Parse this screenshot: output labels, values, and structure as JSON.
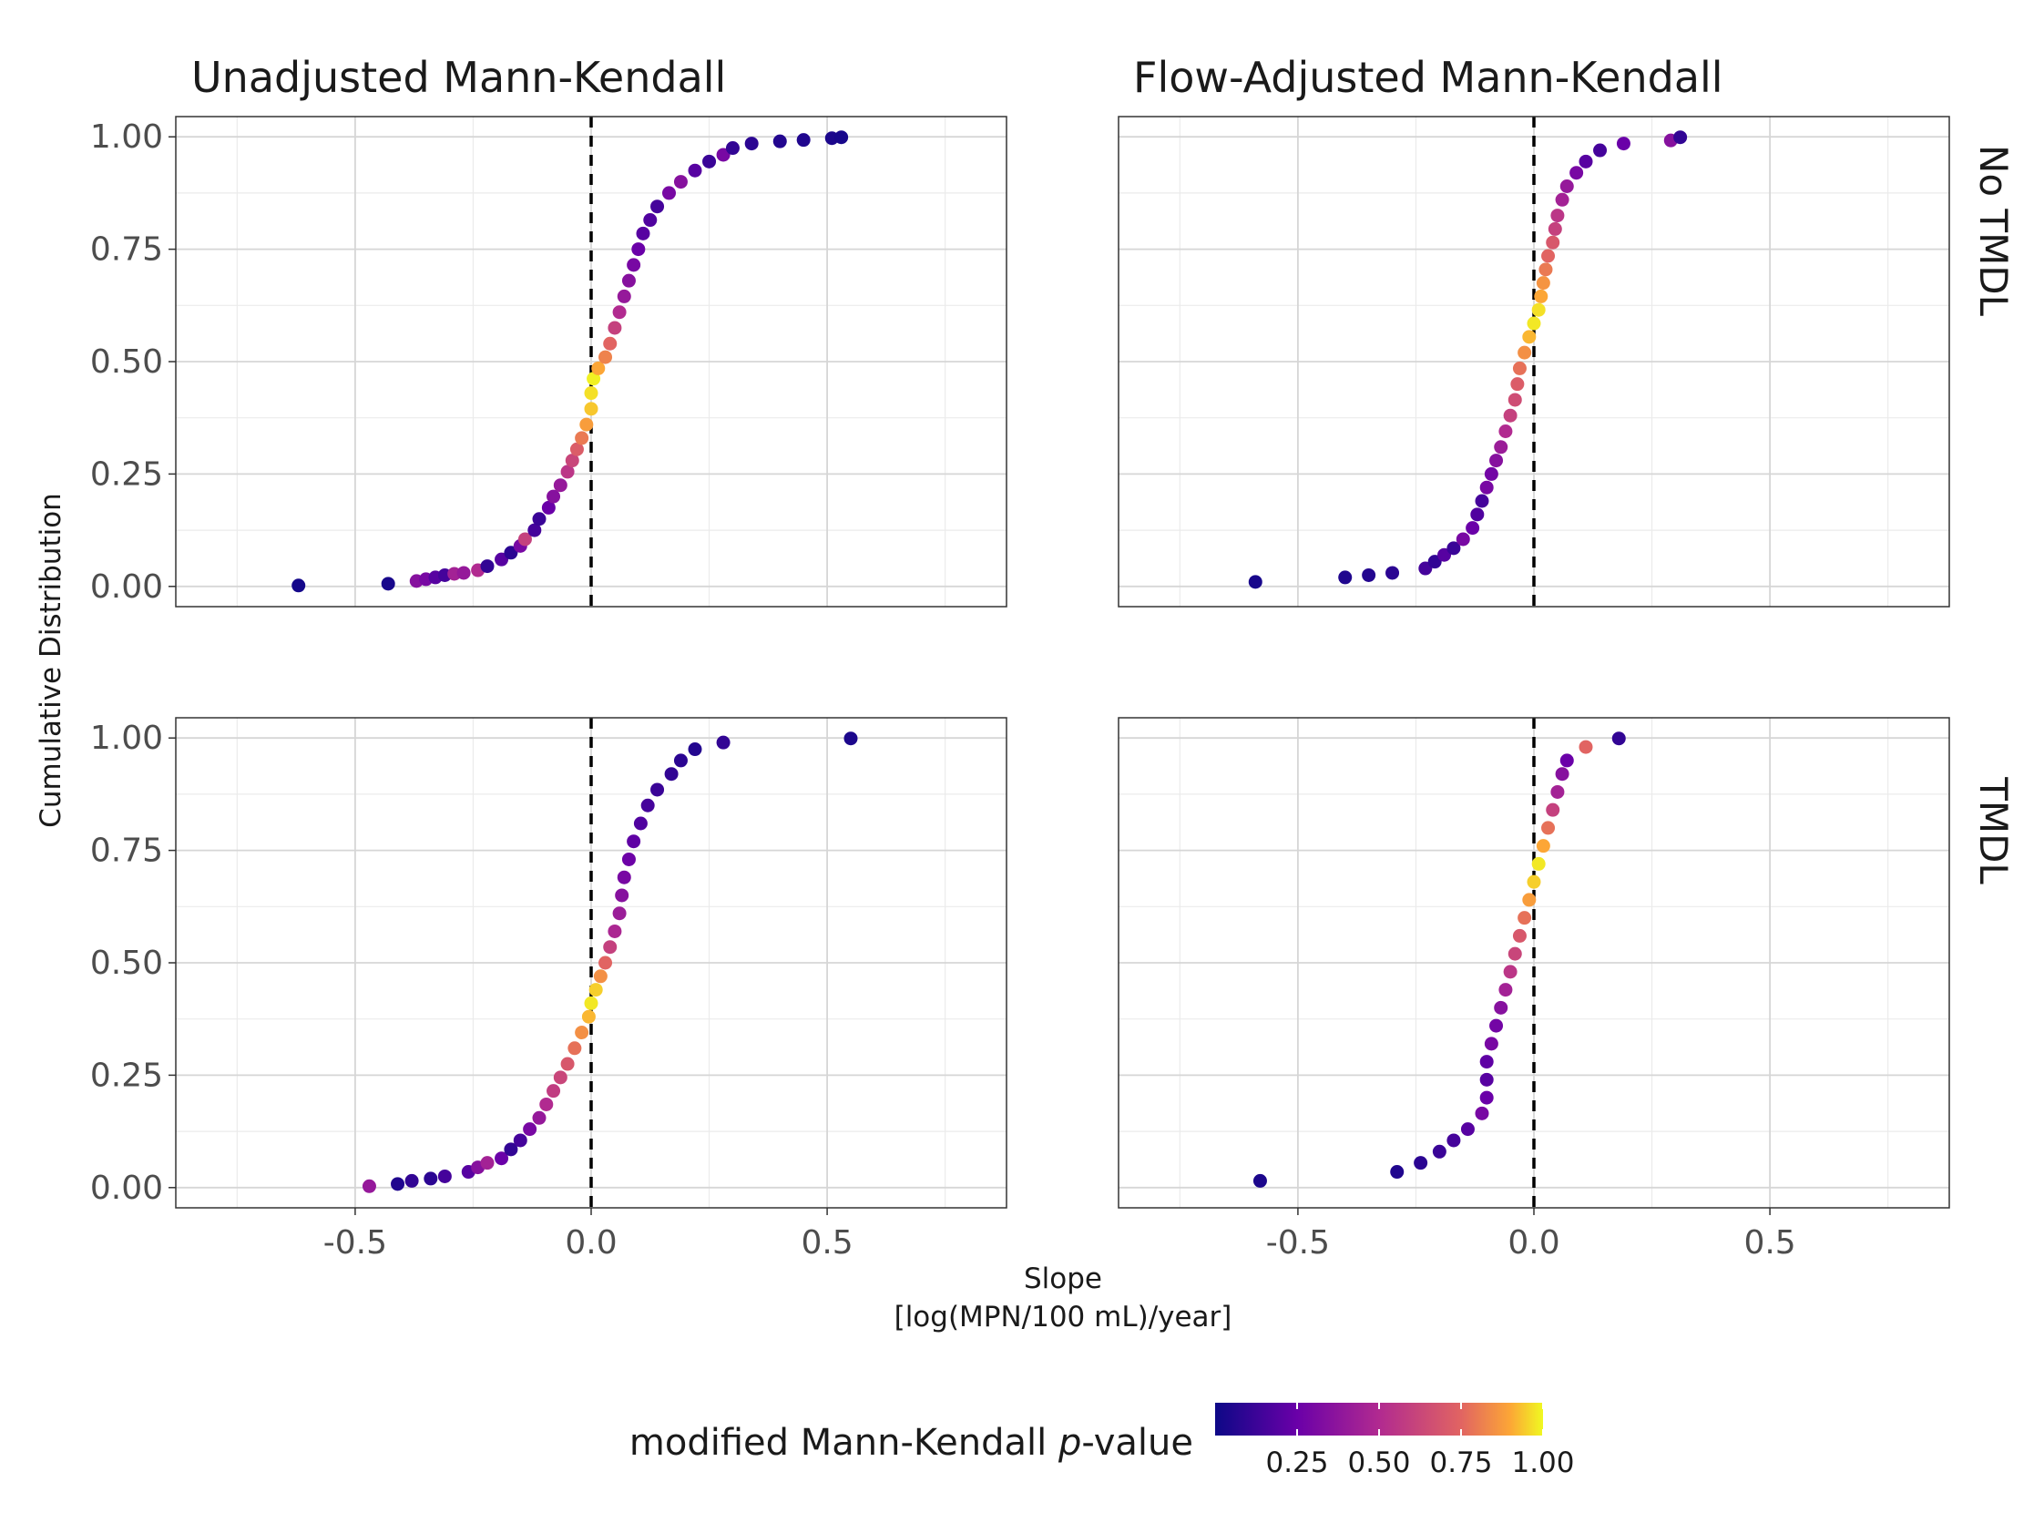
{
  "chart_data": {
    "type": "scatter",
    "panel_titles": [
      "Unadjusted Mann-Kendall",
      "Flow-Adjusted Mann-Kendall"
    ],
    "row_labels": [
      "No TMDL",
      "TMDL"
    ],
    "xlabel_line1": "Slope",
    "xlabel_line2": "[log(MPN/100 mL)/year]",
    "ylabel": "Cumulative Distribution",
    "xlim": [
      -0.88,
      0.88
    ],
    "ylim": [
      -0.045,
      1.045
    ],
    "x_ticks": [
      -0.5,
      0.0,
      0.5
    ],
    "x_tick_labels": [
      "-0.5",
      "0.0",
      "0.5"
    ],
    "y_ticks": [
      0,
      0.25,
      0.5,
      0.75,
      1
    ],
    "y_tick_labels": [
      "0.00",
      "0.25",
      "0.50",
      "0.75",
      "1.00"
    ],
    "reference_line_x": 0,
    "grid": true,
    "colorscale": "plasma",
    "legend": {
      "title_text": "modified Mann-Kendall ",
      "title_italic": "p",
      "title_suffix": "-value",
      "position": "bottom",
      "ticks": [
        0.25,
        0.5,
        0.75,
        1.0
      ],
      "tick_labels": [
        "0.25",
        "0.50",
        "0.75",
        "1.00"
      ],
      "range": [
        0.0,
        1.0
      ]
    },
    "panels": [
      {
        "row": "No TMDL",
        "column": "Unadjusted Mann-Kendall",
        "points": [
          [
            -0.62,
            0.002,
            0.02
          ],
          [
            -0.43,
            0.006,
            0.03
          ],
          [
            -0.37,
            0.012,
            0.35
          ],
          [
            -0.35,
            0.016,
            0.3
          ],
          [
            -0.33,
            0.02,
            0.2
          ],
          [
            -0.31,
            0.025,
            0.15
          ],
          [
            -0.29,
            0.028,
            0.45
          ],
          [
            -0.27,
            0.03,
            0.4
          ],
          [
            -0.24,
            0.036,
            0.5
          ],
          [
            -0.22,
            0.045,
            0.1
          ],
          [
            -0.19,
            0.06,
            0.2
          ],
          [
            -0.17,
            0.075,
            0.08
          ],
          [
            -0.15,
            0.09,
            0.3
          ],
          [
            -0.14,
            0.105,
            0.6
          ],
          [
            -0.12,
            0.125,
            0.15
          ],
          [
            -0.11,
            0.15,
            0.12
          ],
          [
            -0.09,
            0.175,
            0.25
          ],
          [
            -0.08,
            0.2,
            0.35
          ],
          [
            -0.065,
            0.225,
            0.4
          ],
          [
            -0.05,
            0.255,
            0.55
          ],
          [
            -0.04,
            0.28,
            0.62
          ],
          [
            -0.03,
            0.305,
            0.72
          ],
          [
            -0.02,
            0.33,
            0.8
          ],
          [
            -0.01,
            0.36,
            0.88
          ],
          [
            0.0,
            0.395,
            0.94
          ],
          [
            0.0,
            0.43,
            0.97
          ],
          [
            0.005,
            0.462,
            0.99
          ],
          [
            0.015,
            0.485,
            0.9
          ],
          [
            0.03,
            0.51,
            0.82
          ],
          [
            0.04,
            0.54,
            0.75
          ],
          [
            0.05,
            0.575,
            0.6
          ],
          [
            0.06,
            0.61,
            0.5
          ],
          [
            0.07,
            0.645,
            0.4
          ],
          [
            0.08,
            0.68,
            0.35
          ],
          [
            0.09,
            0.715,
            0.3
          ],
          [
            0.1,
            0.75,
            0.25
          ],
          [
            0.11,
            0.785,
            0.2
          ],
          [
            0.125,
            0.815,
            0.18
          ],
          [
            0.14,
            0.845,
            0.15
          ],
          [
            0.165,
            0.875,
            0.3
          ],
          [
            0.19,
            0.9,
            0.35
          ],
          [
            0.22,
            0.925,
            0.2
          ],
          [
            0.25,
            0.945,
            0.12
          ],
          [
            0.28,
            0.96,
            0.3
          ],
          [
            0.3,
            0.975,
            0.1
          ],
          [
            0.34,
            0.985,
            0.08
          ],
          [
            0.4,
            0.99,
            0.06
          ],
          [
            0.45,
            0.993,
            0.05
          ],
          [
            0.51,
            0.997,
            0.04
          ],
          [
            0.53,
            0.999,
            0.03
          ]
        ]
      },
      {
        "row": "No TMDL",
        "column": "Flow-Adjusted Mann-Kendall",
        "points": [
          [
            -0.59,
            0.01,
            0.03
          ],
          [
            -0.4,
            0.02,
            0.05
          ],
          [
            -0.35,
            0.025,
            0.06
          ],
          [
            -0.3,
            0.03,
            0.08
          ],
          [
            -0.23,
            0.04,
            0.15
          ],
          [
            -0.21,
            0.055,
            0.1
          ],
          [
            -0.19,
            0.07,
            0.2
          ],
          [
            -0.17,
            0.085,
            0.12
          ],
          [
            -0.15,
            0.105,
            0.3
          ],
          [
            -0.13,
            0.13,
            0.25
          ],
          [
            -0.12,
            0.16,
            0.18
          ],
          [
            -0.11,
            0.19,
            0.15
          ],
          [
            -0.1,
            0.22,
            0.3
          ],
          [
            -0.09,
            0.25,
            0.28
          ],
          [
            -0.08,
            0.28,
            0.35
          ],
          [
            -0.07,
            0.31,
            0.42
          ],
          [
            -0.06,
            0.345,
            0.5
          ],
          [
            -0.05,
            0.38,
            0.6
          ],
          [
            -0.04,
            0.415,
            0.65
          ],
          [
            -0.035,
            0.45,
            0.72
          ],
          [
            -0.03,
            0.485,
            0.78
          ],
          [
            -0.02,
            0.52,
            0.85
          ],
          [
            -0.01,
            0.555,
            0.92
          ],
          [
            0.0,
            0.585,
            0.98
          ],
          [
            0.01,
            0.615,
            0.97
          ],
          [
            0.015,
            0.645,
            0.9
          ],
          [
            0.02,
            0.675,
            0.86
          ],
          [
            0.025,
            0.705,
            0.8
          ],
          [
            0.03,
            0.735,
            0.75
          ],
          [
            0.04,
            0.765,
            0.7
          ],
          [
            0.045,
            0.795,
            0.6
          ],
          [
            0.05,
            0.825,
            0.55
          ],
          [
            0.06,
            0.86,
            0.45
          ],
          [
            0.07,
            0.89,
            0.4
          ],
          [
            0.09,
            0.92,
            0.3
          ],
          [
            0.11,
            0.945,
            0.2
          ],
          [
            0.14,
            0.97,
            0.15
          ],
          [
            0.19,
            0.985,
            0.25
          ],
          [
            0.29,
            0.992,
            0.35
          ],
          [
            0.31,
            0.999,
            0.1
          ]
        ]
      },
      {
        "row": "TMDL",
        "column": "Unadjusted Mann-Kendall",
        "points": [
          [
            -0.47,
            0.003,
            0.4
          ],
          [
            -0.41,
            0.008,
            0.05
          ],
          [
            -0.38,
            0.015,
            0.1
          ],
          [
            -0.34,
            0.02,
            0.08
          ],
          [
            -0.31,
            0.025,
            0.15
          ],
          [
            -0.26,
            0.035,
            0.2
          ],
          [
            -0.24,
            0.045,
            0.35
          ],
          [
            -0.22,
            0.055,
            0.45
          ],
          [
            -0.19,
            0.065,
            0.25
          ],
          [
            -0.17,
            0.085,
            0.1
          ],
          [
            -0.15,
            0.105,
            0.15
          ],
          [
            -0.13,
            0.13,
            0.3
          ],
          [
            -0.11,
            0.155,
            0.4
          ],
          [
            -0.095,
            0.185,
            0.5
          ],
          [
            -0.08,
            0.215,
            0.58
          ],
          [
            -0.065,
            0.245,
            0.62
          ],
          [
            -0.05,
            0.275,
            0.7
          ],
          [
            -0.035,
            0.31,
            0.78
          ],
          [
            -0.02,
            0.345,
            0.85
          ],
          [
            -0.005,
            0.38,
            0.92
          ],
          [
            0.0,
            0.41,
            0.98
          ],
          [
            0.01,
            0.44,
            0.95
          ],
          [
            0.02,
            0.47,
            0.85
          ],
          [
            0.03,
            0.5,
            0.75
          ],
          [
            0.04,
            0.535,
            0.6
          ],
          [
            0.05,
            0.57,
            0.48
          ],
          [
            0.06,
            0.61,
            0.42
          ],
          [
            0.065,
            0.65,
            0.35
          ],
          [
            0.07,
            0.69,
            0.3
          ],
          [
            0.08,
            0.73,
            0.26
          ],
          [
            0.09,
            0.77,
            0.22
          ],
          [
            0.105,
            0.81,
            0.18
          ],
          [
            0.12,
            0.85,
            0.15
          ],
          [
            0.14,
            0.885,
            0.12
          ],
          [
            0.17,
            0.92,
            0.1
          ],
          [
            0.19,
            0.95,
            0.08
          ],
          [
            0.22,
            0.975,
            0.06
          ],
          [
            0.28,
            0.99,
            0.1
          ],
          [
            0.55,
            0.999,
            0.04
          ]
        ]
      },
      {
        "row": "TMDL",
        "column": "Flow-Adjusted Mann-Kendall",
        "points": [
          [
            -0.58,
            0.015,
            0.04
          ],
          [
            -0.29,
            0.035,
            0.05
          ],
          [
            -0.24,
            0.055,
            0.08
          ],
          [
            -0.2,
            0.08,
            0.12
          ],
          [
            -0.17,
            0.105,
            0.15
          ],
          [
            -0.14,
            0.13,
            0.2
          ],
          [
            -0.11,
            0.165,
            0.3
          ],
          [
            -0.1,
            0.2,
            0.25
          ],
          [
            -0.1,
            0.24,
            0.2
          ],
          [
            -0.1,
            0.28,
            0.22
          ],
          [
            -0.09,
            0.32,
            0.3
          ],
          [
            -0.08,
            0.36,
            0.28
          ],
          [
            -0.07,
            0.4,
            0.35
          ],
          [
            -0.06,
            0.44,
            0.45
          ],
          [
            -0.05,
            0.48,
            0.55
          ],
          [
            -0.04,
            0.52,
            0.62
          ],
          [
            -0.03,
            0.56,
            0.7
          ],
          [
            -0.02,
            0.6,
            0.78
          ],
          [
            -0.01,
            0.64,
            0.88
          ],
          [
            0.0,
            0.68,
            0.95
          ],
          [
            0.01,
            0.72,
            0.98
          ],
          [
            0.02,
            0.76,
            0.9
          ],
          [
            0.03,
            0.8,
            0.78
          ],
          [
            0.04,
            0.84,
            0.6
          ],
          [
            0.05,
            0.88,
            0.45
          ],
          [
            0.06,
            0.92,
            0.35
          ],
          [
            0.07,
            0.95,
            0.25
          ],
          [
            0.11,
            0.98,
            0.75
          ],
          [
            0.18,
            0.999,
            0.1
          ]
        ]
      }
    ]
  }
}
